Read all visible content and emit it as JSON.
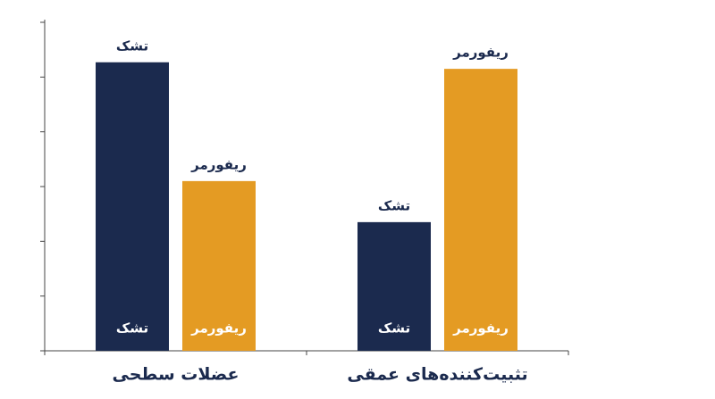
{
  "chart_data": {
    "type": "bar",
    "categories": [
      "عضلات سطحی",
      "تثبیت‌کننده‌های عمقی"
    ],
    "series": [
      {
        "name": "تشک",
        "color": "#1b2a4e",
        "values": [
          5.27,
          2.35
        ]
      },
      {
        "name": "ریفورمر",
        "color": "#e49b23",
        "values": [
          3.1,
          5.15
        ]
      }
    ],
    "ylim": [
      0,
      6
    ],
    "yticks": [
      0,
      1,
      2,
      3,
      4,
      5,
      6
    ]
  }
}
